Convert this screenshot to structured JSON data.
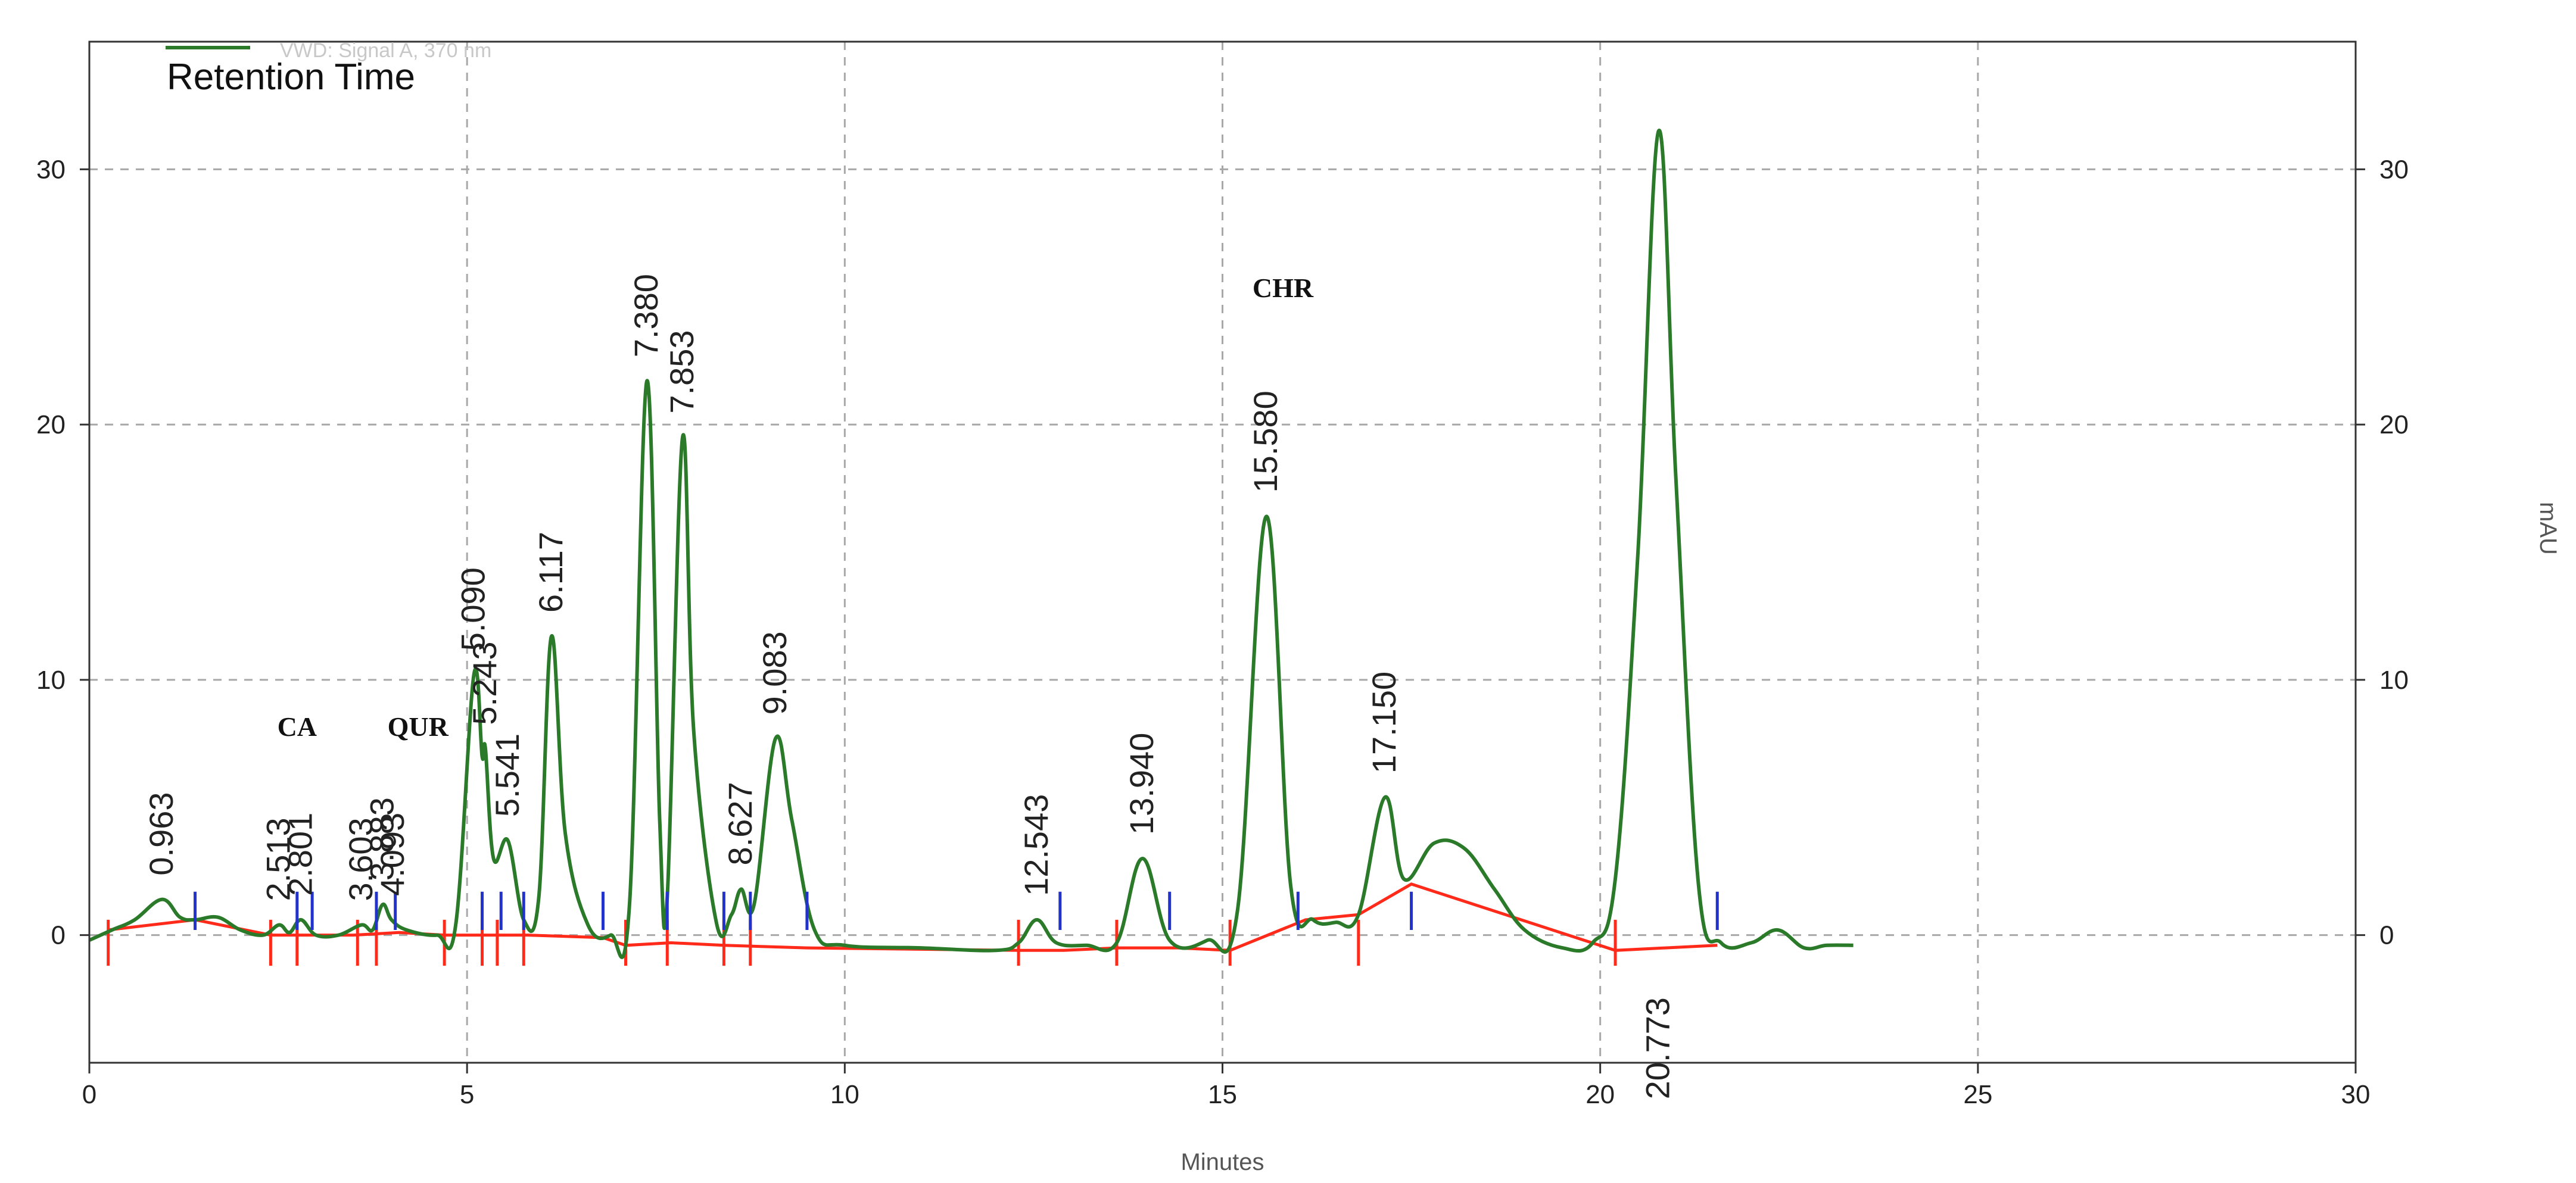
{
  "chart_data": {
    "type": "line",
    "title": "",
    "xlabel": "Minutes",
    "ylabel_right": "mAU",
    "xlim": [
      0,
      30
    ],
    "ylim": [
      -5,
      35
    ],
    "x_ticks": [
      0,
      5,
      10,
      15,
      20,
      25,
      30
    ],
    "y_ticks": [
      0,
      10,
      20,
      30
    ],
    "grid": true,
    "legend": {
      "position": "top-left",
      "entries": [
        "Retention Time"
      ],
      "faded_text": "VWD: Signal A, 370 nm",
      "colors": [
        "#2a7a2a"
      ]
    },
    "colors": {
      "trace": "#2a7a2a",
      "baseline": "#ff2a1a",
      "marker": "#2233cc",
      "grid": "#a8a8a8"
    },
    "series": [
      {
        "name": "Retention Time",
        "x": [
          0.0,
          0.3,
          0.6,
          0.963,
          1.2,
          1.4,
          1.7,
          2.0,
          2.3,
          2.513,
          2.65,
          2.801,
          3.0,
          3.3,
          3.603,
          3.75,
          3.883,
          4.0,
          4.2,
          4.6,
          4.85,
          5.09,
          5.2,
          5.243,
          5.35,
          5.541,
          5.75,
          5.95,
          6.117,
          6.3,
          6.6,
          6.9,
          7.15,
          7.38,
          7.55,
          7.65,
          7.853,
          8.0,
          8.3,
          8.5,
          8.627,
          8.8,
          9.083,
          9.3,
          9.6,
          10.0,
          11.0,
          12.0,
          12.3,
          12.543,
          12.8,
          13.2,
          13.6,
          13.94,
          14.3,
          14.8,
          15.2,
          15.58,
          15.9,
          16.2,
          16.5,
          16.8,
          17.15,
          17.4,
          17.8,
          18.2,
          18.6,
          19.0,
          19.5,
          19.9,
          20.2,
          20.5,
          20.773,
          21.0,
          21.3,
          21.6,
          22.0,
          22.35,
          22.7,
          23.0,
          23.35
        ],
        "y": [
          -0.2,
          0.2,
          0.6,
          1.4,
          0.7,
          0.6,
          0.7,
          0.2,
          0.0,
          0.4,
          0.1,
          0.6,
          0.0,
          0.0,
          0.4,
          0.2,
          1.2,
          0.6,
          0.2,
          0.0,
          0.4,
          10.2,
          7.0,
          7.3,
          3.0,
          3.7,
          0.6,
          1.5,
          11.7,
          4.0,
          0.4,
          0.0,
          1.2,
          21.7,
          4.5,
          1.5,
          19.5,
          8.0,
          0.5,
          0.8,
          1.8,
          1.2,
          7.7,
          4.5,
          0.2,
          -0.4,
          -0.5,
          -0.6,
          -0.3,
          0.6,
          -0.3,
          -0.4,
          -0.3,
          3.0,
          -0.2,
          -0.2,
          1.0,
          16.4,
          2.0,
          0.6,
          0.5,
          0.8,
          5.4,
          2.2,
          3.6,
          3.4,
          1.8,
          0.2,
          -0.5,
          -0.3,
          2.2,
          15.0,
          31.5,
          18.0,
          2.0,
          -0.3,
          -0.3,
          0.2,
          -0.5,
          -0.4,
          -0.4
        ]
      }
    ],
    "peak_labels": [
      {
        "text": "0.963",
        "x": 0.963,
        "y": 1.4
      },
      {
        "text": "2.513",
        "x": 2.513,
        "y": 0.4
      },
      {
        "text": "2.801",
        "x": 2.801,
        "y": 0.6
      },
      {
        "text": "3.603",
        "x": 3.603,
        "y": 0.4
      },
      {
        "text": "3.883",
        "x": 3.883,
        "y": 1.2
      },
      {
        "text": "4.093",
        "x": 4.02,
        "y": 0.6
      },
      {
        "text": "5.090",
        "x": 5.09,
        "y": 10.2
      },
      {
        "text": "5.243",
        "x": 5.243,
        "y": 7.3
      },
      {
        "text": "5.541",
        "x": 5.541,
        "y": 3.7
      },
      {
        "text": "6.117",
        "x": 6.117,
        "y": 11.7
      },
      {
        "text": "7.380",
        "x": 7.38,
        "y": 21.7
      },
      {
        "text": "7.853",
        "x": 7.853,
        "y": 19.5
      },
      {
        "text": "8.627",
        "x": 8.627,
        "y": 1.8
      },
      {
        "text": "9.083",
        "x": 9.083,
        "y": 7.7
      },
      {
        "text": "12.543",
        "x": 12.543,
        "y": 0.6
      },
      {
        "text": "13.940",
        "x": 13.94,
        "y": 3.0
      },
      {
        "text": "15.580",
        "x": 15.58,
        "y": 16.4
      },
      {
        "text": "17.150",
        "x": 17.15,
        "y": 5.4
      },
      {
        "text": "20.773",
        "x": 20.773,
        "y": -0.6
      }
    ],
    "annotations": [
      {
        "text": "CA",
        "x": 2.75,
        "y": 7.8
      },
      {
        "text": "QUR",
        "x": 4.35,
        "y": 7.8
      },
      {
        "text": "CHR",
        "x": 15.8,
        "y": 25.0
      }
    ],
    "peak_markers": [
      1.4,
      2.75,
      2.95,
      3.8,
      4.05,
      5.2,
      5.45,
      5.75,
      6.8,
      7.65,
      8.4,
      8.75,
      9.5,
      12.85,
      14.3,
      16.0,
      17.5,
      21.55
    ],
    "baseline_cuts": [
      0.25,
      2.4,
      2.75,
      3.55,
      3.8,
      4.7,
      5.2,
      5.4,
      5.75,
      7.1,
      7.65,
      8.4,
      8.75,
      12.3,
      13.6,
      15.1,
      16.8,
      20.2
    ]
  }
}
